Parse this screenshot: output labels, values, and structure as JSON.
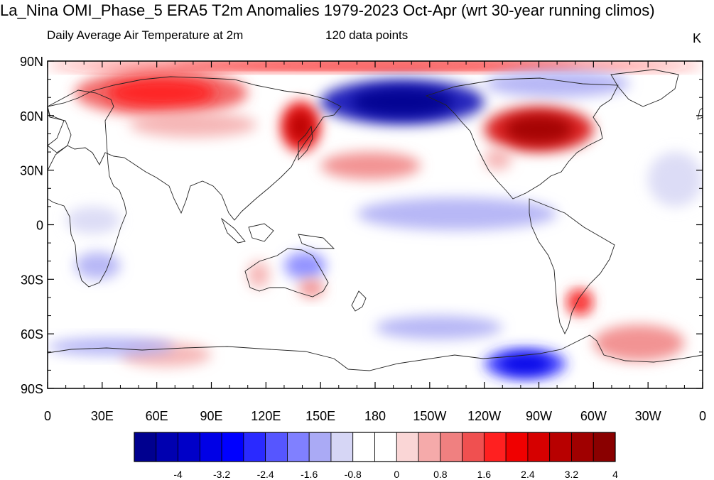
{
  "title": "La_Nina OMI_Phase_5 ERA5 T2m Anomalies 1979-2023 Oct-Apr (wrt 30-year running climos)",
  "subtitle_left": "Daily Average Air Temperature at 2m",
  "subtitle_center": "120 data points",
  "units": "K",
  "lat_labels": [
    "90N",
    "60N",
    "30N",
    "0",
    "30S",
    "60S",
    "90S"
  ],
  "lon_labels": [
    "0",
    "30E",
    "60E",
    "90E",
    "120E",
    "150E",
    "180",
    "150W",
    "120W",
    "90W",
    "60W",
    "30W",
    "0"
  ],
  "colorbar": {
    "labels": [
      "-4",
      "-3.2",
      "-2.4",
      "-1.6",
      "-0.8",
      "0",
      "0.8",
      "1.6",
      "2.4",
      "3.2",
      "4"
    ],
    "colors": [
      "#00008f",
      "#0000b0",
      "#0000c8",
      "#0000e6",
      "#0000ff",
      "#2a2aff",
      "#5656ff",
      "#8080ff",
      "#aaaaf5",
      "#d6d6f5",
      "#ffffff",
      "#ffffff",
      "#fad6d6",
      "#f5aaaa",
      "#f08080",
      "#f05050",
      "#ff2020",
      "#f00000",
      "#d60000",
      "#b80000",
      "#a00000",
      "#8a0000"
    ]
  },
  "chart_data": {
    "type": "heatmap",
    "projection": "cylindrical equidistant",
    "lon_range": [
      0,
      360
    ],
    "lat_range": [
      -90,
      90
    ],
    "value_range": [
      -4,
      4
    ],
    "anomalies": [
      {
        "region": "Arctic margin",
        "lon": [
          0,
          360
        ],
        "lat": [
          85,
          90
        ],
        "value": 2.0
      },
      {
        "region": "Northern Europe / western Siberia",
        "lon": [
          15,
          110
        ],
        "lat": [
          60,
          85
        ],
        "value": 1.6
      },
      {
        "region": "Central Siberia",
        "lon": [
          45,
          115
        ],
        "lat": [
          48,
          62
        ],
        "value": 0.8
      },
      {
        "region": "Northeast China / Sea of Okhotsk",
        "lon": [
          128,
          150
        ],
        "lat": [
          40,
          68
        ],
        "value": 2.6
      },
      {
        "region": "Bering Sea / Alaska / East Siberia",
        "lon": [
          150,
          240
        ],
        "lat": [
          55,
          80
        ],
        "value": -3.6
      },
      {
        "region": "Canadian Arctic",
        "lon": [
          240,
          320
        ],
        "lat": [
          70,
          85
        ],
        "value": -1.2
      },
      {
        "region": "Central / eastern Canada and northern US",
        "lon": [
          240,
          300
        ],
        "lat": [
          40,
          65
        ],
        "value": 3.0
      },
      {
        "region": "Southwestern US",
        "lon": [
          240,
          255
        ],
        "lat": [
          30,
          42
        ],
        "value": 1.0
      },
      {
        "region": "North Pacific",
        "lon": [
          150,
          205
        ],
        "lat": [
          25,
          40
        ],
        "value": 1.2
      },
      {
        "region": "Equatorial Pacific",
        "lon": [
          170,
          280
        ],
        "lat": [
          -3,
          15
        ],
        "value": -1.2
      },
      {
        "region": "Northern Atlantic / Northwest Africa",
        "lon": [
          330,
          360
        ],
        "lat": [
          10,
          40
        ],
        "value": -0.8
      },
      {
        "region": "Central Africa",
        "lon": [
          10,
          40
        ],
        "lat": [
          -5,
          10
        ],
        "value": -0.8
      },
      {
        "region": "Southern Africa",
        "lon": [
          15,
          40
        ],
        "lat": [
          -30,
          -15
        ],
        "value": -1.0
      },
      {
        "region": "Western Australia",
        "lon": [
          110,
          122
        ],
        "lat": [
          -35,
          -20
        ],
        "value": 1.0
      },
      {
        "region": "Eastern Australia",
        "lon": [
          130,
          153
        ],
        "lat": [
          -30,
          -15
        ],
        "value": -1.4
      },
      {
        "region": "Southeast Australia",
        "lon": [
          138,
          152
        ],
        "lat": [
          -40,
          -30
        ],
        "value": 1.2
      },
      {
        "region": "Patagonia",
        "lon": [
          285,
          300
        ],
        "lat": [
          -50,
          -35
        ],
        "value": 1.6
      },
      {
        "region": "South Pacific",
        "lon": [
          180,
          250
        ],
        "lat": [
          -63,
          -50
        ],
        "value": -1.0
      },
      {
        "region": "Amundsen / Bellingshausen Sea",
        "lon": [
          240,
          285
        ],
        "lat": [
          -85,
          -68
        ],
        "value": -2.4
      },
      {
        "region": "Weddell Sea",
        "lon": [
          300,
          350
        ],
        "lat": [
          -75,
          -55
        ],
        "value": 1.4
      },
      {
        "region": "East Antarctica",
        "lon": [
          40,
          90
        ],
        "lat": [
          -78,
          -65
        ],
        "value": 1.0
      },
      {
        "region": "Southern Ocean (Indian sector)",
        "lon": [
          0,
          70
        ],
        "lat": [
          -72,
          -62
        ],
        "value": -0.9
      }
    ]
  }
}
